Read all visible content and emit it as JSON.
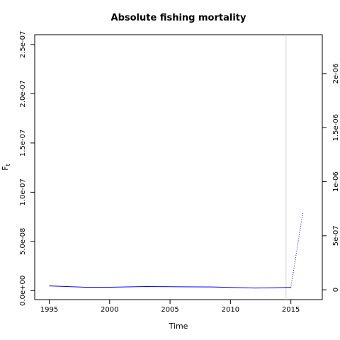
{
  "chart_data": {
    "type": "line",
    "title": "Absolute fishing mortality",
    "xlabel": "Time",
    "ylabel": "F",
    "ylabel_subscript": "t",
    "xlim": [
      1993.8,
      2017.6
    ],
    "ylim": [
      -9.1e-09,
      2.6e-07
    ],
    "ylim_right": [
      -9.1e-08,
      2.36e-06
    ],
    "x_ticks": [
      1995,
      2000,
      2005,
      2010,
      2015
    ],
    "x_tick_labels": [
      "1995",
      "2000",
      "2005",
      "2010",
      "2015"
    ],
    "y_ticks": [
      0,
      5e-08,
      1e-07,
      1.5e-07,
      2e-07,
      2.5e-07
    ],
    "y_tick_labels": [
      "0.0e+00",
      "5.0e-08",
      "1.0e-07",
      "1.5e-07",
      "2.0e-07",
      "2.5e-07"
    ],
    "y_right_ticks": [
      0,
      5e-07,
      1e-06,
      1.5e-06,
      2e-06
    ],
    "y_right_tick_labels": [
      "0",
      "5e-07",
      "1e-06",
      "1.5e-06",
      "2e-06"
    ],
    "grid": false,
    "vline_x": 2014.6,
    "vline_color": "#d3d3d3",
    "series": [
      {
        "style": "solid",
        "color": "#0000ff",
        "x": [
          1995,
          1998,
          2000,
          2003,
          2005,
          2008.5,
          2010,
          2012,
          2014,
          2015
        ],
        "y": [
          4.8e-09,
          3.5e-09,
          3.5e-09,
          4.2e-09,
          4e-09,
          3.8e-09,
          3.3e-09,
          2.7e-09,
          3e-09,
          3.4e-09
        ]
      },
      {
        "style": "dotted",
        "color": "#0000ff",
        "x": [
          2015,
          2016
        ],
        "y": [
          3.4e-09,
          8e-08
        ]
      }
    ]
  }
}
